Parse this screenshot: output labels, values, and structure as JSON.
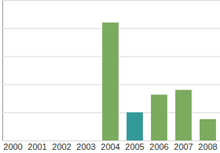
{
  "chart_data": {
    "type": "bar",
    "categories": [
      "2000",
      "2001",
      "2002",
      "2003",
      "2004",
      "2005",
      "2006",
      "2007",
      "2008"
    ],
    "values": [
      0,
      0,
      0,
      0,
      4.2,
      1.0,
      1.63,
      1.8,
      0.76
    ],
    "colors": [
      "#7aab5f",
      "#7aab5f",
      "#7aab5f",
      "#7aab5f",
      "#7aab5f",
      "#339a99",
      "#7aab5f",
      "#7aab5f",
      "#7aab5f"
    ],
    "ylim": [
      0,
      5
    ],
    "yticks": [
      0,
      1,
      2,
      3,
      4,
      5
    ],
    "grid": true,
    "tick_labels": "x"
  }
}
